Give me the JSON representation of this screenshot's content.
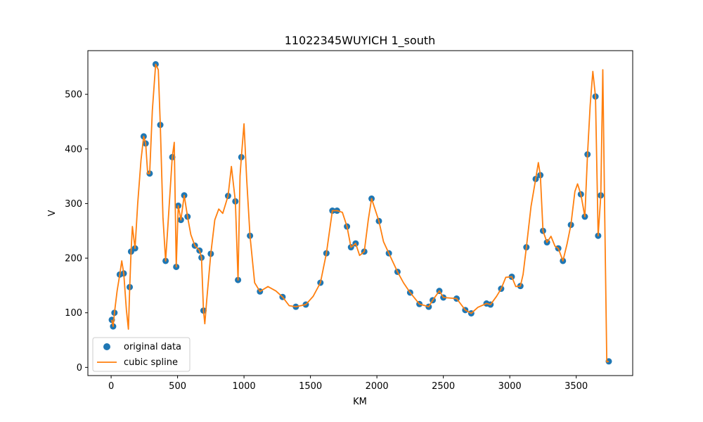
{
  "chart_data": {
    "type": "scatter",
    "title": "11022345WUYICH 1_south",
    "xlabel": "KM",
    "ylabel": "V",
    "xlim": [
      -175,
      3925
    ],
    "ylim": [
      -15,
      580
    ],
    "xticks": [
      0,
      500,
      1000,
      1500,
      2000,
      2500,
      3000,
      3500
    ],
    "yticks": [
      0,
      100,
      200,
      300,
      400,
      500
    ],
    "grid": false,
    "legend": {
      "position": "lower-left",
      "entries": [
        "original data",
        "cubic spline"
      ]
    },
    "colors": {
      "points": "#1f77b4",
      "spline": "#ff7f0e"
    },
    "series": [
      {
        "name": "original data",
        "kind": "points",
        "x": [
          5,
          15,
          25,
          65,
          95,
          140,
          150,
          180,
          245,
          260,
          290,
          335,
          370,
          410,
          460,
          490,
          505,
          525,
          550,
          575,
          630,
          665,
          680,
          695,
          750,
          880,
          935,
          955,
          980,
          1045,
          1120,
          1290,
          1390,
          1465,
          1575,
          1620,
          1665,
          1700,
          1775,
          1805,
          1840,
          1905,
          1960,
          2015,
          2090,
          2155,
          2250,
          2320,
          2390,
          2420,
          2470,
          2500,
          2600,
          2665,
          2710,
          2825,
          2855,
          2935,
          3015,
          3080,
          3125,
          3195,
          3230,
          3250,
          3280,
          3365,
          3400,
          3460,
          3535,
          3565,
          3585,
          3645,
          3665,
          3685,
          3745
        ],
        "y": [
          87,
          75,
          100,
          170,
          172,
          147,
          212,
          218,
          423,
          410,
          355,
          555,
          444,
          195,
          385,
          184,
          296,
          270,
          315,
          276,
          223,
          214,
          201,
          104,
          208,
          314,
          304,
          160,
          385,
          241,
          139,
          129,
          111,
          115,
          155,
          209,
          287,
          287,
          258,
          220,
          227,
          212,
          309,
          268,
          209,
          175,
          137,
          116,
          111,
          123,
          140,
          128,
          126,
          105,
          99,
          117,
          115,
          144,
          166,
          149,
          220,
          345,
          352,
          250,
          229,
          218,
          195,
          261,
          317,
          276,
          390,
          496,
          241,
          315,
          11
        ]
      },
      {
        "name": "cubic spline",
        "kind": "line",
        "x": [
          5,
          15,
          25,
          45,
          65,
          80,
          95,
          115,
          130,
          140,
          150,
          160,
          180,
          200,
          225,
          245,
          260,
          275,
          290,
          310,
          335,
          355,
          370,
          390,
          410,
          430,
          460,
          475,
          490,
          505,
          525,
          550,
          575,
          600,
          630,
          665,
          680,
          695,
          705,
          720,
          750,
          780,
          810,
          840,
          880,
          905,
          935,
          955,
          970,
          980,
          1000,
          1020,
          1045,
          1080,
          1120,
          1180,
          1240,
          1290,
          1340,
          1390,
          1465,
          1520,
          1575,
          1620,
          1665,
          1700,
          1740,
          1775,
          1805,
          1840,
          1870,
          1905,
          1935,
          1960,
          2015,
          2050,
          2090,
          2155,
          2200,
          2250,
          2320,
          2390,
          2420,
          2470,
          2500,
          2550,
          2600,
          2665,
          2710,
          2760,
          2825,
          2855,
          2900,
          2935,
          2970,
          3015,
          3045,
          3080,
          3100,
          3125,
          3160,
          3195,
          3215,
          3230,
          3250,
          3280,
          3310,
          3340,
          3365,
          3400,
          3430,
          3460,
          3490,
          3510,
          3535,
          3565,
          3585,
          3605,
          3625,
          3645,
          3665,
          3685,
          3700,
          3715,
          3730,
          3745
        ],
        "y": [
          87,
          75,
          100,
          140,
          170,
          195,
          172,
          105,
          70,
          147,
          212,
          258,
          218,
          300,
          380,
          423,
          410,
          355,
          355,
          470,
          555,
          545,
          444,
          275,
          195,
          270,
          385,
          412,
          184,
          296,
          270,
          315,
          276,
          243,
          223,
          214,
          201,
          104,
          80,
          125,
          208,
          270,
          290,
          282,
          314,
          368,
          304,
          160,
          350,
          385,
          446,
          345,
          241,
          155,
          139,
          148,
          140,
          129,
          113,
          111,
          115,
          130,
          155,
          209,
          287,
          287,
          284,
          258,
          220,
          227,
          205,
          212,
          270,
          309,
          268,
          230,
          209,
          175,
          155,
          137,
          116,
          111,
          123,
          140,
          128,
          127,
          126,
          105,
          99,
          110,
          117,
          115,
          130,
          144,
          165,
          166,
          148,
          149,
          170,
          220,
          295,
          345,
          375,
          352,
          250,
          229,
          240,
          222,
          218,
          195,
          225,
          261,
          322,
          336,
          317,
          276,
          390,
          480,
          542,
          496,
          241,
          315,
          545,
          270,
          10,
          11
        ]
      }
    ]
  }
}
